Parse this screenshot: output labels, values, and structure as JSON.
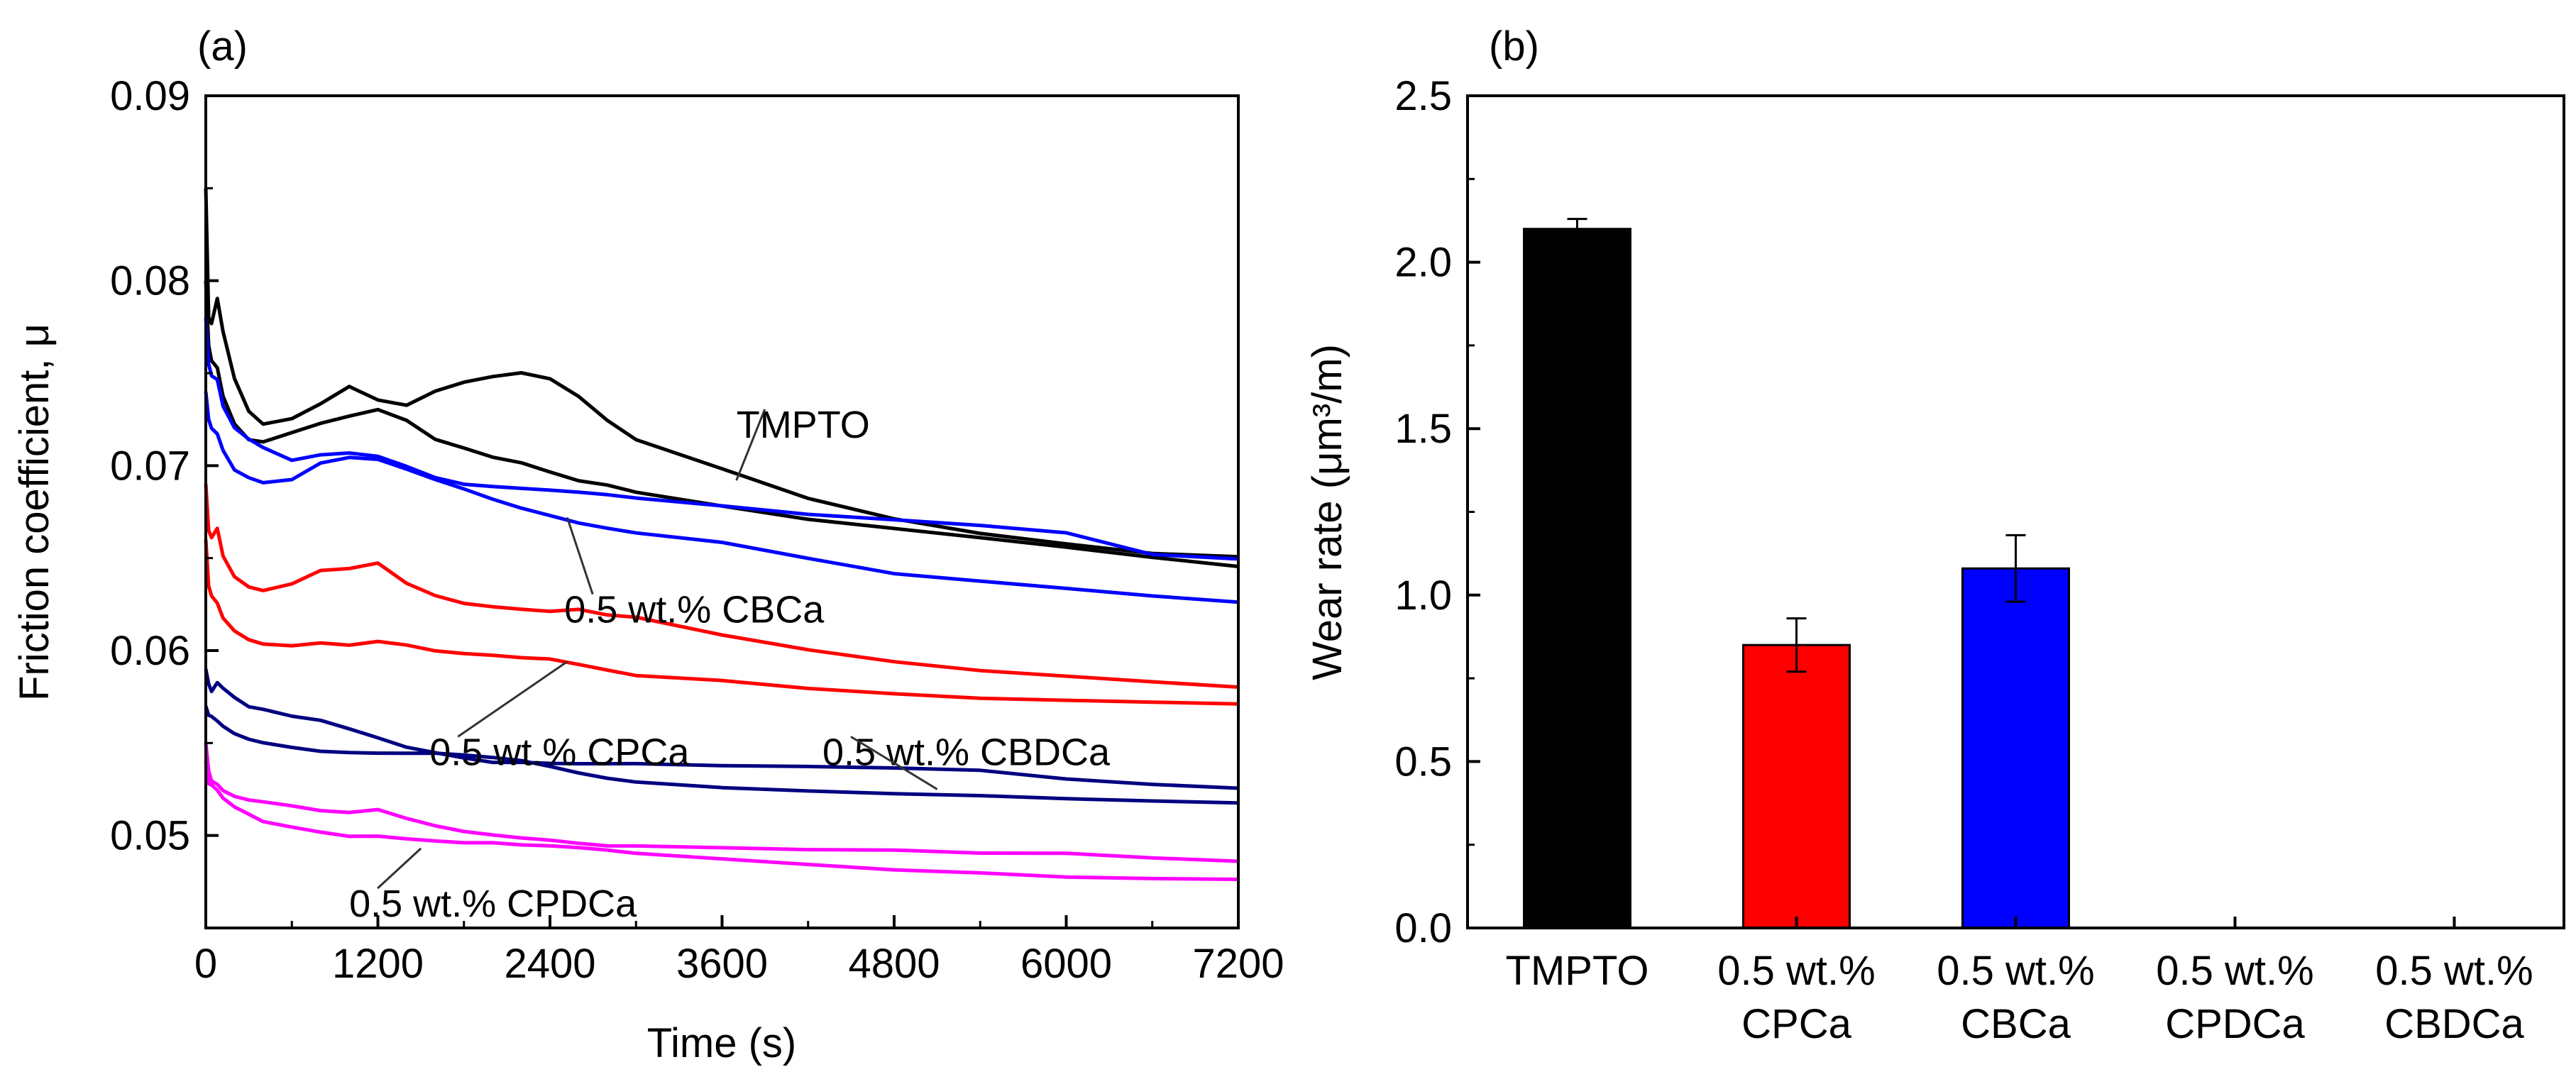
{
  "chart_data": [
    {
      "panel": "(a)",
      "type": "line",
      "title": "",
      "xlabel": "Time (s)",
      "ylabel": "Friction coefficient, μ",
      "xlim": [
        0,
        7200
      ],
      "ylim": [
        0.045,
        0.09
      ],
      "xticks": [
        "0",
        "1200",
        "2400",
        "3600",
        "4800",
        "6000",
        "7200"
      ],
      "yticks": [
        "0.05",
        "0.06",
        "0.07",
        "0.08",
        "0.09"
      ],
      "x": [
        0,
        20,
        40,
        80,
        120,
        200,
        300,
        400,
        600,
        800,
        1000,
        1200,
        1400,
        1600,
        1800,
        2000,
        2200,
        2400,
        2600,
        2800,
        3000,
        3600,
        4200,
        4800,
        5400,
        6000,
        6600,
        7200
      ],
      "series": [
        {
          "name": "TMPTO (run 1)",
          "color": "#000000",
          "values": [
            0.085,
            0.078,
            0.0775,
            0.0788,
            0.077,
            0.0745,
            0.0728,
            0.0722,
            0.0726,
            0.0735,
            0.0745,
            0.0738,
            0.0735,
            0.0742,
            0.0746,
            0.0748,
            0.0749,
            0.0745,
            0.0735,
            0.0722,
            0.0712,
            0.0697,
            0.0682,
            0.0672,
            0.0665,
            0.066,
            0.0655,
            0.0653
          ]
        },
        {
          "name": "TMPTO (run 2)",
          "color": "#000000",
          "values": [
            0.08,
            0.0765,
            0.0758,
            0.0755,
            0.074,
            0.0725,
            0.0716,
            0.0714,
            0.0718,
            0.0722,
            0.0725,
            0.0728,
            0.0722,
            0.0712,
            0.0708,
            0.0704,
            0.0702,
            0.0698,
            0.0694,
            0.0692,
            0.0688,
            0.068,
            0.0672,
            0.0666,
            0.066,
            0.0654,
            0.0648,
            0.0643
          ]
        },
        {
          "name": "0.5 wt.% CBCa (run 1)",
          "color": "#0000ff",
          "values": [
            0.078,
            0.0755,
            0.0748,
            0.0745,
            0.073,
            0.0718,
            0.0712,
            0.0708,
            0.0702,
            0.0706,
            0.0708,
            0.0707,
            0.0702,
            0.0696,
            0.0692,
            0.069,
            0.0688,
            0.0686,
            0.0684,
            0.0682,
            0.068,
            0.0676,
            0.0672,
            0.067,
            0.0668,
            0.0665,
            0.0654,
            0.0652
          ]
        },
        {
          "name": "0.5 wt.% CBCa (run 2)",
          "color": "#0000ff",
          "values": [
            0.074,
            0.0725,
            0.072,
            0.0718,
            0.071,
            0.07,
            0.0696,
            0.0693,
            0.0694,
            0.0702,
            0.0704,
            0.0702,
            0.0696,
            0.069,
            0.0685,
            0.068,
            0.0676,
            0.0673,
            0.067,
            0.0668,
            0.0666,
            0.0661,
            0.0652,
            0.0643,
            0.0638,
            0.0633,
            0.0628,
            0.0624
          ]
        },
        {
          "name": "0.5 wt.% CPCa (run 1)",
          "color": "#ff0000",
          "values": [
            0.069,
            0.0665,
            0.0662,
            0.0666,
            0.065,
            0.0638,
            0.0632,
            0.063,
            0.0634,
            0.0642,
            0.0644,
            0.0648,
            0.0638,
            0.0632,
            0.0628,
            0.0626,
            0.0624,
            0.0622,
            0.0622,
            0.0618,
            0.0616,
            0.0606,
            0.0598,
            0.0592,
            0.0588,
            0.0586,
            0.0584,
            0.0582
          ]
        },
        {
          "name": "0.5 wt.% CPCa (run 2)",
          "color": "#ff0000",
          "values": [
            0.066,
            0.0635,
            0.0628,
            0.0625,
            0.0618,
            0.0612,
            0.0608,
            0.0606,
            0.0605,
            0.0606,
            0.0604,
            0.0605,
            0.0602,
            0.0598,
            0.0596,
            0.0595,
            0.0594,
            0.0594,
            0.0592,
            0.059,
            0.0588,
            0.0586,
            0.0582,
            0.0579,
            0.0576,
            0.0574,
            0.0572,
            0.057
          ]
        },
        {
          "name": "0.5 wt.% CBDCa (run 1)",
          "color": "#000080",
          "values": [
            0.059,
            0.0582,
            0.058,
            0.0584,
            0.058,
            0.0574,
            0.0568,
            0.0566,
            0.0562,
            0.056,
            0.0556,
            0.0552,
            0.0548,
            0.0546,
            0.0544,
            0.0542,
            0.0542,
            0.0541,
            0.054,
            0.0539,
            0.0538,
            0.0536,
            0.0535,
            0.0534,
            0.0533,
            0.0529,
            0.0527,
            0.0526
          ]
        },
        {
          "name": "0.5 wt.% CBDCa (run 2)",
          "color": "#000080",
          "values": [
            0.057,
            0.0565,
            0.0562,
            0.056,
            0.0558,
            0.0555,
            0.0553,
            0.0552,
            0.055,
            0.0548,
            0.0547,
            0.0546,
            0.0545,
            0.0544,
            0.0542,
            0.054,
            0.0538,
            0.0535,
            0.0532,
            0.053,
            0.0529,
            0.0527,
            0.0526,
            0.0525,
            0.0524,
            0.0522,
            0.052,
            0.0518
          ]
        },
        {
          "name": "0.5 wt.% CPDCa (run 1)",
          "color": "#ff00ff",
          "values": [
            0.055,
            0.0535,
            0.0532,
            0.053,
            0.0526,
            0.0522,
            0.0519,
            0.0517,
            0.0514,
            0.0511,
            0.051,
            0.0512,
            0.0508,
            0.0505,
            0.0503,
            0.0502,
            0.0501,
            0.05,
            0.0498,
            0.0496,
            0.0495,
            0.0493,
            0.0491,
            0.049,
            0.0488,
            0.0488,
            0.0486,
            0.0485
          ]
        },
        {
          "name": "0.5 wt.% CPDCa (run 2)",
          "color": "#ff00ff",
          "values": [
            0.054,
            0.0528,
            0.0525,
            0.0522,
            0.0518,
            0.0514,
            0.0511,
            0.0508,
            0.0506,
            0.0504,
            0.0502,
            0.0502,
            0.05,
            0.0498,
            0.0496,
            0.0495,
            0.0493,
            0.0492,
            0.0491,
            0.049,
            0.0489,
            0.0487,
            0.0485,
            0.0483,
            0.0482,
            0.048,
            0.0479,
            0.0478
          ]
        }
      ],
      "annotations": [
        {
          "text": "TMPTO",
          "x": 3700,
          "y": 0.0722,
          "arrow_to": [
            3700,
            0.0692
          ]
        },
        {
          "text": "0.5 wt.% CBCa",
          "x": 2500,
          "y": 0.0622,
          "arrow_to": [
            2520,
            0.0672
          ]
        },
        {
          "text": "0.5 wt.% CPCa",
          "x": 1560,
          "y": 0.0545,
          "arrow_to": [
            2520,
            0.0594
          ]
        },
        {
          "text": "0.5 wt.% CBDCa",
          "x": 4300,
          "y": 0.0545,
          "arrow_to": [
            5100,
            0.0525
          ]
        },
        {
          "text": "0.5 wt.% CPDCa",
          "x": 1000,
          "y": 0.0463,
          "arrow_to": [
            1500,
            0.0493
          ]
        }
      ]
    },
    {
      "panel": "(b)",
      "type": "bar",
      "title": "",
      "xlabel": "",
      "ylabel": "Wear rate (μm³/m)",
      "ylim": [
        0,
        2.5
      ],
      "yticks": [
        "0.0",
        "0.5",
        "1.0",
        "1.5",
        "2.0",
        "2.5"
      ],
      "categories": [
        {
          "line1": "TMPTO",
          "line2": ""
        },
        {
          "line1": "0.5 wt.%",
          "line2": "CPCa"
        },
        {
          "line1": "0.5 wt.%",
          "line2": "CBCa"
        },
        {
          "line1": "0.5 wt.%",
          "line2": "CPDCa"
        },
        {
          "line1": "0.5 wt.%",
          "line2": "CBDCa"
        }
      ],
      "values": [
        2.1,
        0.85,
        1.08,
        0,
        0
      ],
      "errors": [
        0.03,
        0.08,
        0.1,
        0,
        0
      ],
      "colors": [
        "#000000",
        "#ff0000",
        "#0000ff",
        "#ffffff",
        "#ffffff"
      ]
    }
  ]
}
